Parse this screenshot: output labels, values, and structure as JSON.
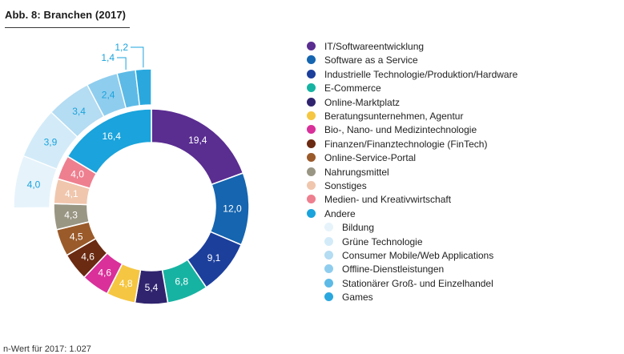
{
  "figure": {
    "title": "Abb. 8:  Branchen (2017)",
    "footnote": "n-Wert für 2017: 1.027"
  },
  "chart_data": {
    "type": "pie",
    "subtype": "donut-with-exploded-breakdown",
    "title": "Abb. 8:  Branchen (2017)",
    "series": [
      {
        "name": "IT/Softwareentwicklung",
        "value": 19.4,
        "color": "#5a2d91"
      },
      {
        "name": "Software as a Service",
        "value": 12.0,
        "color": "#1565b0"
      },
      {
        "name": "Industrielle Technologie/Produktion/Hardware",
        "value": 9.1,
        "color": "#1c3f9c"
      },
      {
        "name": "E-Commerce",
        "value": 6.8,
        "color": "#17b3a2"
      },
      {
        "name": "Online-Marktplatz",
        "value": 5.4,
        "color": "#30246e"
      },
      {
        "name": "Beratungsunternehmen, Agentur",
        "value": 4.8,
        "color": "#f5c642"
      },
      {
        "name": "Bio-, Nano- und Medizintechnologie",
        "value": 4.6,
        "color": "#d9309a"
      },
      {
        "name": "Finanzen/Finanztechnologie (FinTech)",
        "value": 4.6,
        "color": "#6b2a12"
      },
      {
        "name": "Online-Service-Portal",
        "value": 4.5,
        "color": "#9a5a2a"
      },
      {
        "name": "Nahrungsmittel",
        "value": 4.3,
        "color": "#9a9684"
      },
      {
        "name": "Sonstiges",
        "value": 4.1,
        "color": "#f0c6ad"
      },
      {
        "name": "Medien- und Kreativwirtschaft",
        "value": 4.0,
        "color": "#ee7f8f"
      },
      {
        "name": "Andere",
        "value": 16.4,
        "color": "#1aa3dc"
      }
    ],
    "breakdown_of": "Andere",
    "breakdown": [
      {
        "name": "Bildung",
        "value": 4.0,
        "color": "#e6f3fb"
      },
      {
        "name": "Grüne Technologie",
        "value": 3.9,
        "color": "#d3ebf8"
      },
      {
        "name": "Consumer Mobile/Web Applications",
        "value": 3.4,
        "color": "#b4dcf2"
      },
      {
        "name": "Offline-Dienstleistungen",
        "value": 2.4,
        "color": "#8fcdee"
      },
      {
        "name": "Stationärer Groß- und Einzelhandel",
        "value": 1.4,
        "color": "#5dbae6"
      },
      {
        "name": "Games",
        "value": 1.2,
        "color": "#2aa8de"
      }
    ],
    "legend_position": "right"
  }
}
